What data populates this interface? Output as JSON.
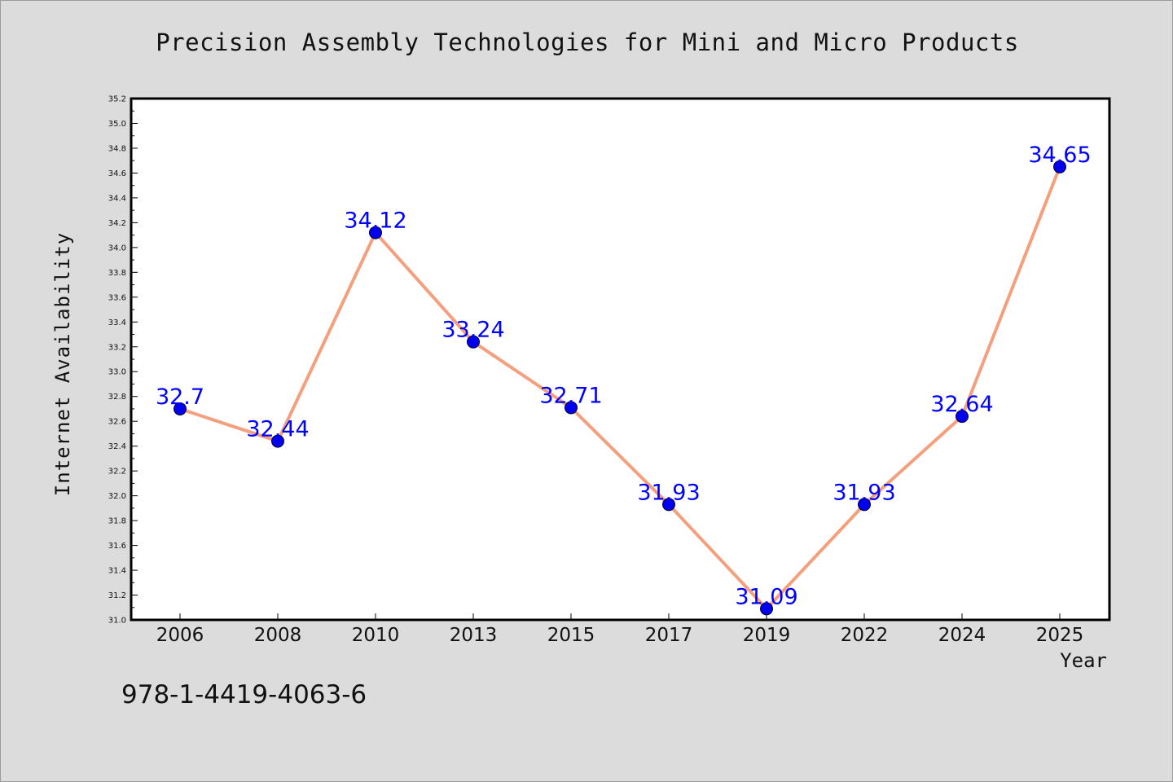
{
  "chart_data": {
    "type": "line",
    "title": "Precision Assembly Technologies for Mini and Micro Products",
    "xlabel": "Year",
    "ylabel": "Internet Availability",
    "categories": [
      "2006",
      "2008",
      "2010",
      "2013",
      "2015",
      "2017",
      "2019",
      "2022",
      "2024",
      "2025"
    ],
    "series": [
      {
        "values": [
          32.7,
          32.44,
          34.12,
          33.24,
          32.71,
          31.93,
          31.09,
          31.93,
          32.64,
          34.65
        ],
        "data_labels": [
          "32.7",
          "32.44",
          "34.12",
          "33.24",
          "32.71",
          "31.93",
          "31.09",
          "31.93",
          "32.64",
          "34.65"
        ]
      }
    ],
    "ylim": [
      31.0,
      35.2
    ],
    "y_ticks": [
      "31.0",
      "31.2",
      "31.4",
      "31.6",
      "31.8",
      "32.0",
      "32.2",
      "32.4",
      "32.6",
      "32.8",
      "33.0",
      "33.2",
      "33.4",
      "33.6",
      "33.8",
      "34.0",
      "34.2",
      "34.4",
      "34.6",
      "34.8",
      "35.0",
      "35.2"
    ],
    "grid": false,
    "legend": "none",
    "colors": {
      "line": "#f4a07e",
      "marker": "#0000ee",
      "label": "#0000ff",
      "background": "#dcdcdc",
      "plot_background": "#ffffff"
    }
  },
  "footer": {
    "isbn": "978-1-4419-4063-6"
  }
}
